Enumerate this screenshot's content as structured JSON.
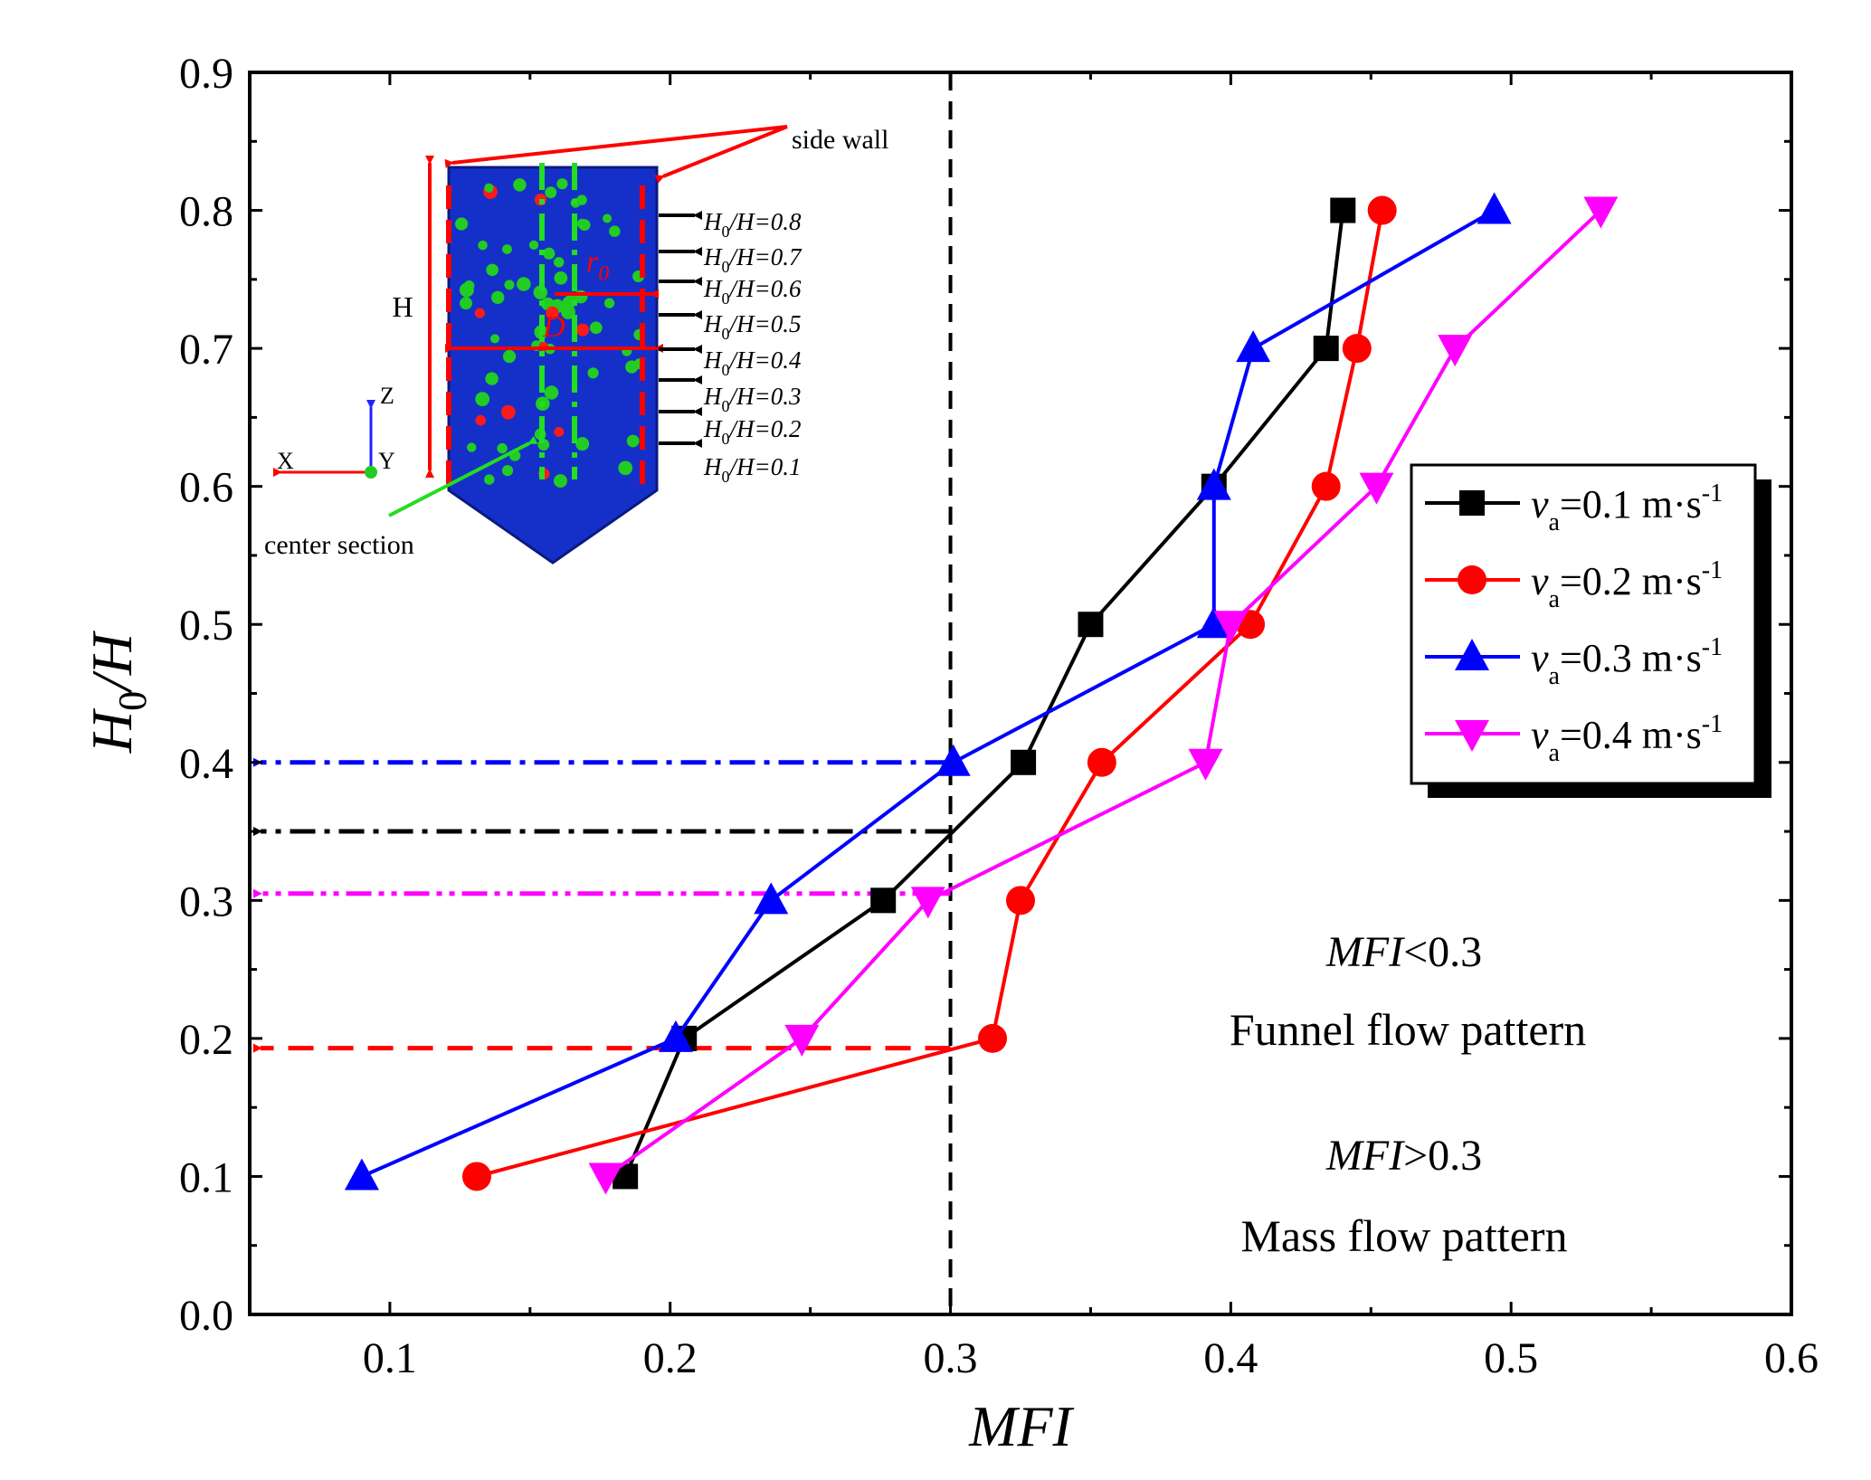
{
  "chart_data": {
    "type": "line",
    "xlabel": "MFI",
    "ylabel": {
      "main": "H",
      "sub": "0",
      "tail": "/H"
    },
    "xlim": [
      0.05,
      0.6
    ],
    "ylim": [
      0.0,
      0.9
    ],
    "xticks": [
      "0.1",
      "0.2",
      "0.3",
      "0.4",
      "0.5",
      "0.6"
    ],
    "xtick_values": [
      0.1,
      0.2,
      0.3,
      0.4,
      0.5,
      0.6
    ],
    "yticks": [
      "0.0",
      "0.1",
      "0.2",
      "0.3",
      "0.4",
      "0.5",
      "0.6",
      "0.7",
      "0.8",
      "0.9"
    ],
    "ytick_values": [
      0.0,
      0.1,
      0.2,
      0.3,
      0.4,
      0.5,
      0.6,
      0.7,
      0.8,
      0.9
    ],
    "y": [
      0.1,
      0.2,
      0.3,
      0.4,
      0.5,
      0.6,
      0.7,
      0.8
    ],
    "series": [
      {
        "name": "va=0.1 m·s-1",
        "label_main": "v",
        "label_sub": "a",
        "label_text": "=0.1 m·s",
        "label_sup": "-1",
        "color": "#000000",
        "marker": "square",
        "x": [
          0.184,
          0.205,
          0.276,
          0.326,
          0.35,
          0.394,
          0.434,
          0.44
        ]
      },
      {
        "name": "va=0.2 m·s-1",
        "label_main": "v",
        "label_sub": "a",
        "label_text": "=0.2 m·s",
        "label_sup": "-1",
        "color": "#ff0000",
        "marker": "circle",
        "x": [
          0.131,
          0.315,
          0.325,
          0.354,
          0.407,
          0.434,
          0.445,
          0.454
        ]
      },
      {
        "name": "va=0.3 m·s-1",
        "label_main": "v",
        "label_sub": "a",
        "label_text": "=0.3 m·s",
        "label_sup": "-1",
        "color": "#0000ff",
        "marker": "triangle-up",
        "x": [
          0.09,
          0.202,
          0.236,
          0.301,
          0.394,
          0.394,
          0.408,
          0.494
        ]
      },
      {
        "name": "va=0.4 m·s-1",
        "label_main": "v",
        "label_sub": "a",
        "label_text": "=0.4 m·s",
        "label_sup": "-1",
        "color": "#ff00ff",
        "marker": "triangle-down",
        "x": [
          0.177,
          0.247,
          0.292,
          0.391,
          0.4,
          0.452,
          0.48,
          0.532
        ]
      }
    ],
    "reference_lines": [
      {
        "kind": "vertical",
        "x": 0.3,
        "color": "#000000",
        "style": "dash"
      },
      {
        "kind": "arrow",
        "y": 0.4,
        "x_from": 0.3,
        "color": "#0000ff",
        "style": "dashdot"
      },
      {
        "kind": "arrow",
        "y": 0.35,
        "x_from": 0.3,
        "color": "#000000",
        "style": "dashdot"
      },
      {
        "kind": "arrow",
        "y": 0.305,
        "x_from": 0.3,
        "color": "#ff00ff",
        "style": "dashdotdot"
      },
      {
        "kind": "arrow",
        "y": 0.193,
        "x_from": 0.3,
        "color": "#ff0000",
        "style": "dash"
      }
    ],
    "legend_position": "right",
    "annotations": {
      "funnel_condition": {
        "var": "MFI",
        "rest": "<0.3"
      },
      "funnel_text": "Funnel flow pattern",
      "mass_condition": {
        "var": "MFI",
        "rest": ">0.3"
      },
      "mass_text": "Mass flow pattern"
    },
    "inset": {
      "side_wall": "side wall",
      "center_section": "center section",
      "height_label": "H",
      "radius_label": "r",
      "radius_sub": "0",
      "diameter_label": "D",
      "axis_z": "Z",
      "axis_x": "X",
      "axis_y": "Y",
      "levels": [
        {
          "main": "H",
          "sub": "0",
          "rest": "/H=0.8"
        },
        {
          "main": "H",
          "sub": "0",
          "rest": "/H=0.7"
        },
        {
          "main": "H",
          "sub": "0",
          "rest": "/H=0.6"
        },
        {
          "main": "H",
          "sub": "0",
          "rest": "/H=0.5"
        },
        {
          "main": "H",
          "sub": "0",
          "rest": "/H=0.4"
        },
        {
          "main": "H",
          "sub": "0",
          "rest": "/H=0.3"
        },
        {
          "main": "H",
          "sub": "0",
          "rest": "/H=0.2"
        },
        {
          "main": "H",
          "sub": "0",
          "rest": "/H=0.1"
        }
      ]
    }
  }
}
